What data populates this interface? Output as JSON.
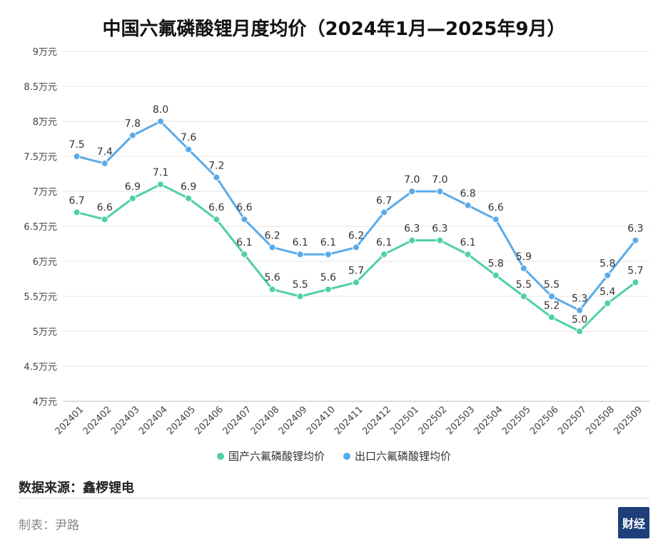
{
  "title": "中国六氟磷酸锂月度均价（2024年1月—2025年9月）",
  "source": "数据来源：鑫椤锂电",
  "author": "制表：尹路",
  "logo_text": "财经",
  "chart_data": {
    "type": "line",
    "title": "中国六氟磷酸锂月度均价（2024年1月—2025年9月）",
    "x": [
      "202401",
      "202402",
      "202403",
      "202404",
      "202405",
      "202406",
      "202407",
      "202408",
      "202409",
      "202410",
      "202411",
      "202412",
      "202501",
      "202502",
      "202503",
      "202504",
      "202505",
      "202506",
      "202507",
      "202508",
      "202509"
    ],
    "series": [
      {
        "name": "国产六氟磷酸锂均价",
        "color": "#4fd1a0",
        "values": [
          6.7,
          6.6,
          6.9,
          7.1,
          6.9,
          6.6,
          6.1,
          5.6,
          5.5,
          5.6,
          5.7,
          6.1,
          6.3,
          6.3,
          6.1,
          5.8,
          5.5,
          5.2,
          5.0,
          5.4,
          5.7
        ]
      },
      {
        "name": "出口六氟磷酸锂均价",
        "color": "#5aaae8",
        "values": [
          7.5,
          7.4,
          7.8,
          8.0,
          7.6,
          7.2,
          6.6,
          6.2,
          6.1,
          6.1,
          6.2,
          6.7,
          7.0,
          7.0,
          6.8,
          6.6,
          5.9,
          5.5,
          5.3,
          5.8,
          6.3
        ]
      }
    ],
    "yticks": [
      "4万元",
      "4.5万元",
      "5万元",
      "5.5万元",
      "6万元",
      "6.5万元",
      "7万元",
      "7.5万元",
      "8万元",
      "8.5万元",
      "9万元"
    ],
    "ylim": [
      4,
      9
    ],
    "grid": true,
    "legend": "bottom-center"
  }
}
